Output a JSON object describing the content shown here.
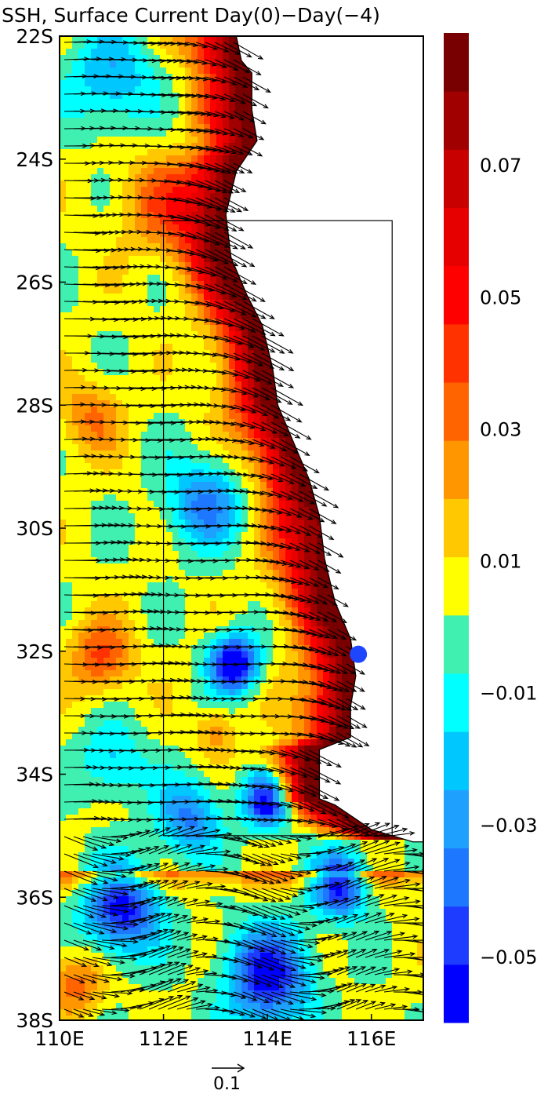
{
  "chart_data": {
    "type": "heatmap",
    "title": "SSH, Surface Current Day(0)−Day(−4)",
    "xlabel": "",
    "ylabel": "",
    "x_range": [
      110,
      117
    ],
    "y_range": [
      -38,
      -22
    ],
    "x_ticks": [
      {
        "value": 110,
        "label": "110E"
      },
      {
        "value": 112,
        "label": "112E"
      },
      {
        "value": 114,
        "label": "114E"
      },
      {
        "value": 116,
        "label": "116E"
      }
    ],
    "y_ticks": [
      {
        "value": -22,
        "label": "22S"
      },
      {
        "value": -24,
        "label": "24S"
      },
      {
        "value": -26,
        "label": "26S"
      },
      {
        "value": -28,
        "label": "28S"
      },
      {
        "value": -30,
        "label": "30S"
      },
      {
        "value": -32,
        "label": "32S"
      },
      {
        "value": -34,
        "label": "34S"
      },
      {
        "value": -36,
        "label": "36S"
      },
      {
        "value": -38,
        "label": "38S"
      }
    ],
    "colorbar": {
      "colors": [
        "#0000ff",
        "#1e3cff",
        "#1e78ff",
        "#1ea0ff",
        "#00c8ff",
        "#00ffff",
        "#40f0b0",
        "#ffff00",
        "#ffc800",
        "#ff9600",
        "#ff6400",
        "#ff3200",
        "#ff0000",
        "#e60000",
        "#c80000",
        "#a00000",
        "#780000"
      ],
      "tick_labels": [
        "0.07",
        "0.05",
        "0.03",
        "0.01",
        "−0.01",
        "−0.03",
        "−0.05"
      ],
      "tick_values": [
        0.07,
        0.05,
        0.03,
        0.01,
        -0.01,
        -0.03,
        -0.05
      ],
      "min": -0.06,
      "max": 0.09
    },
    "coastline": [
      [
        113.4,
        -22.0
      ],
      [
        113.5,
        -22.4
      ],
      [
        113.7,
        -22.6
      ],
      [
        113.7,
        -23.2
      ],
      [
        113.8,
        -23.7
      ],
      [
        113.4,
        -24.2
      ],
      [
        113.2,
        -24.9
      ],
      [
        113.3,
        -25.6
      ],
      [
        113.6,
        -26.2
      ],
      [
        113.9,
        -26.7
      ],
      [
        114.1,
        -27.4
      ],
      [
        114.2,
        -28.0
      ],
      [
        114.5,
        -28.6
      ],
      [
        114.8,
        -29.2
      ],
      [
        115.0,
        -29.8
      ],
      [
        115.1,
        -30.5
      ],
      [
        115.3,
        -31.2
      ],
      [
        115.6,
        -31.8
      ],
      [
        115.7,
        -32.4
      ],
      [
        115.6,
        -32.9
      ],
      [
        115.6,
        -33.4
      ],
      [
        115.0,
        -33.6
      ],
      [
        115.0,
        -34.4
      ],
      [
        115.3,
        -34.5
      ],
      [
        116.0,
        -34.9
      ],
      [
        116.8,
        -35.1
      ],
      [
        117.0,
        -35.1
      ]
    ],
    "box": {
      "lon": [
        112.0,
        116.4
      ],
      "lat": [
        -35.0,
        -25.0
      ]
    },
    "marker": {
      "lon": 115.75,
      "lat": -32.05,
      "color": "#1e46ff"
    },
    "colors": {
      "land": "#ffffff",
      "arrow": "#000000",
      "frame": "#000000"
    },
    "vector_reference": {
      "label": "0.1",
      "value": 0.1
    }
  }
}
